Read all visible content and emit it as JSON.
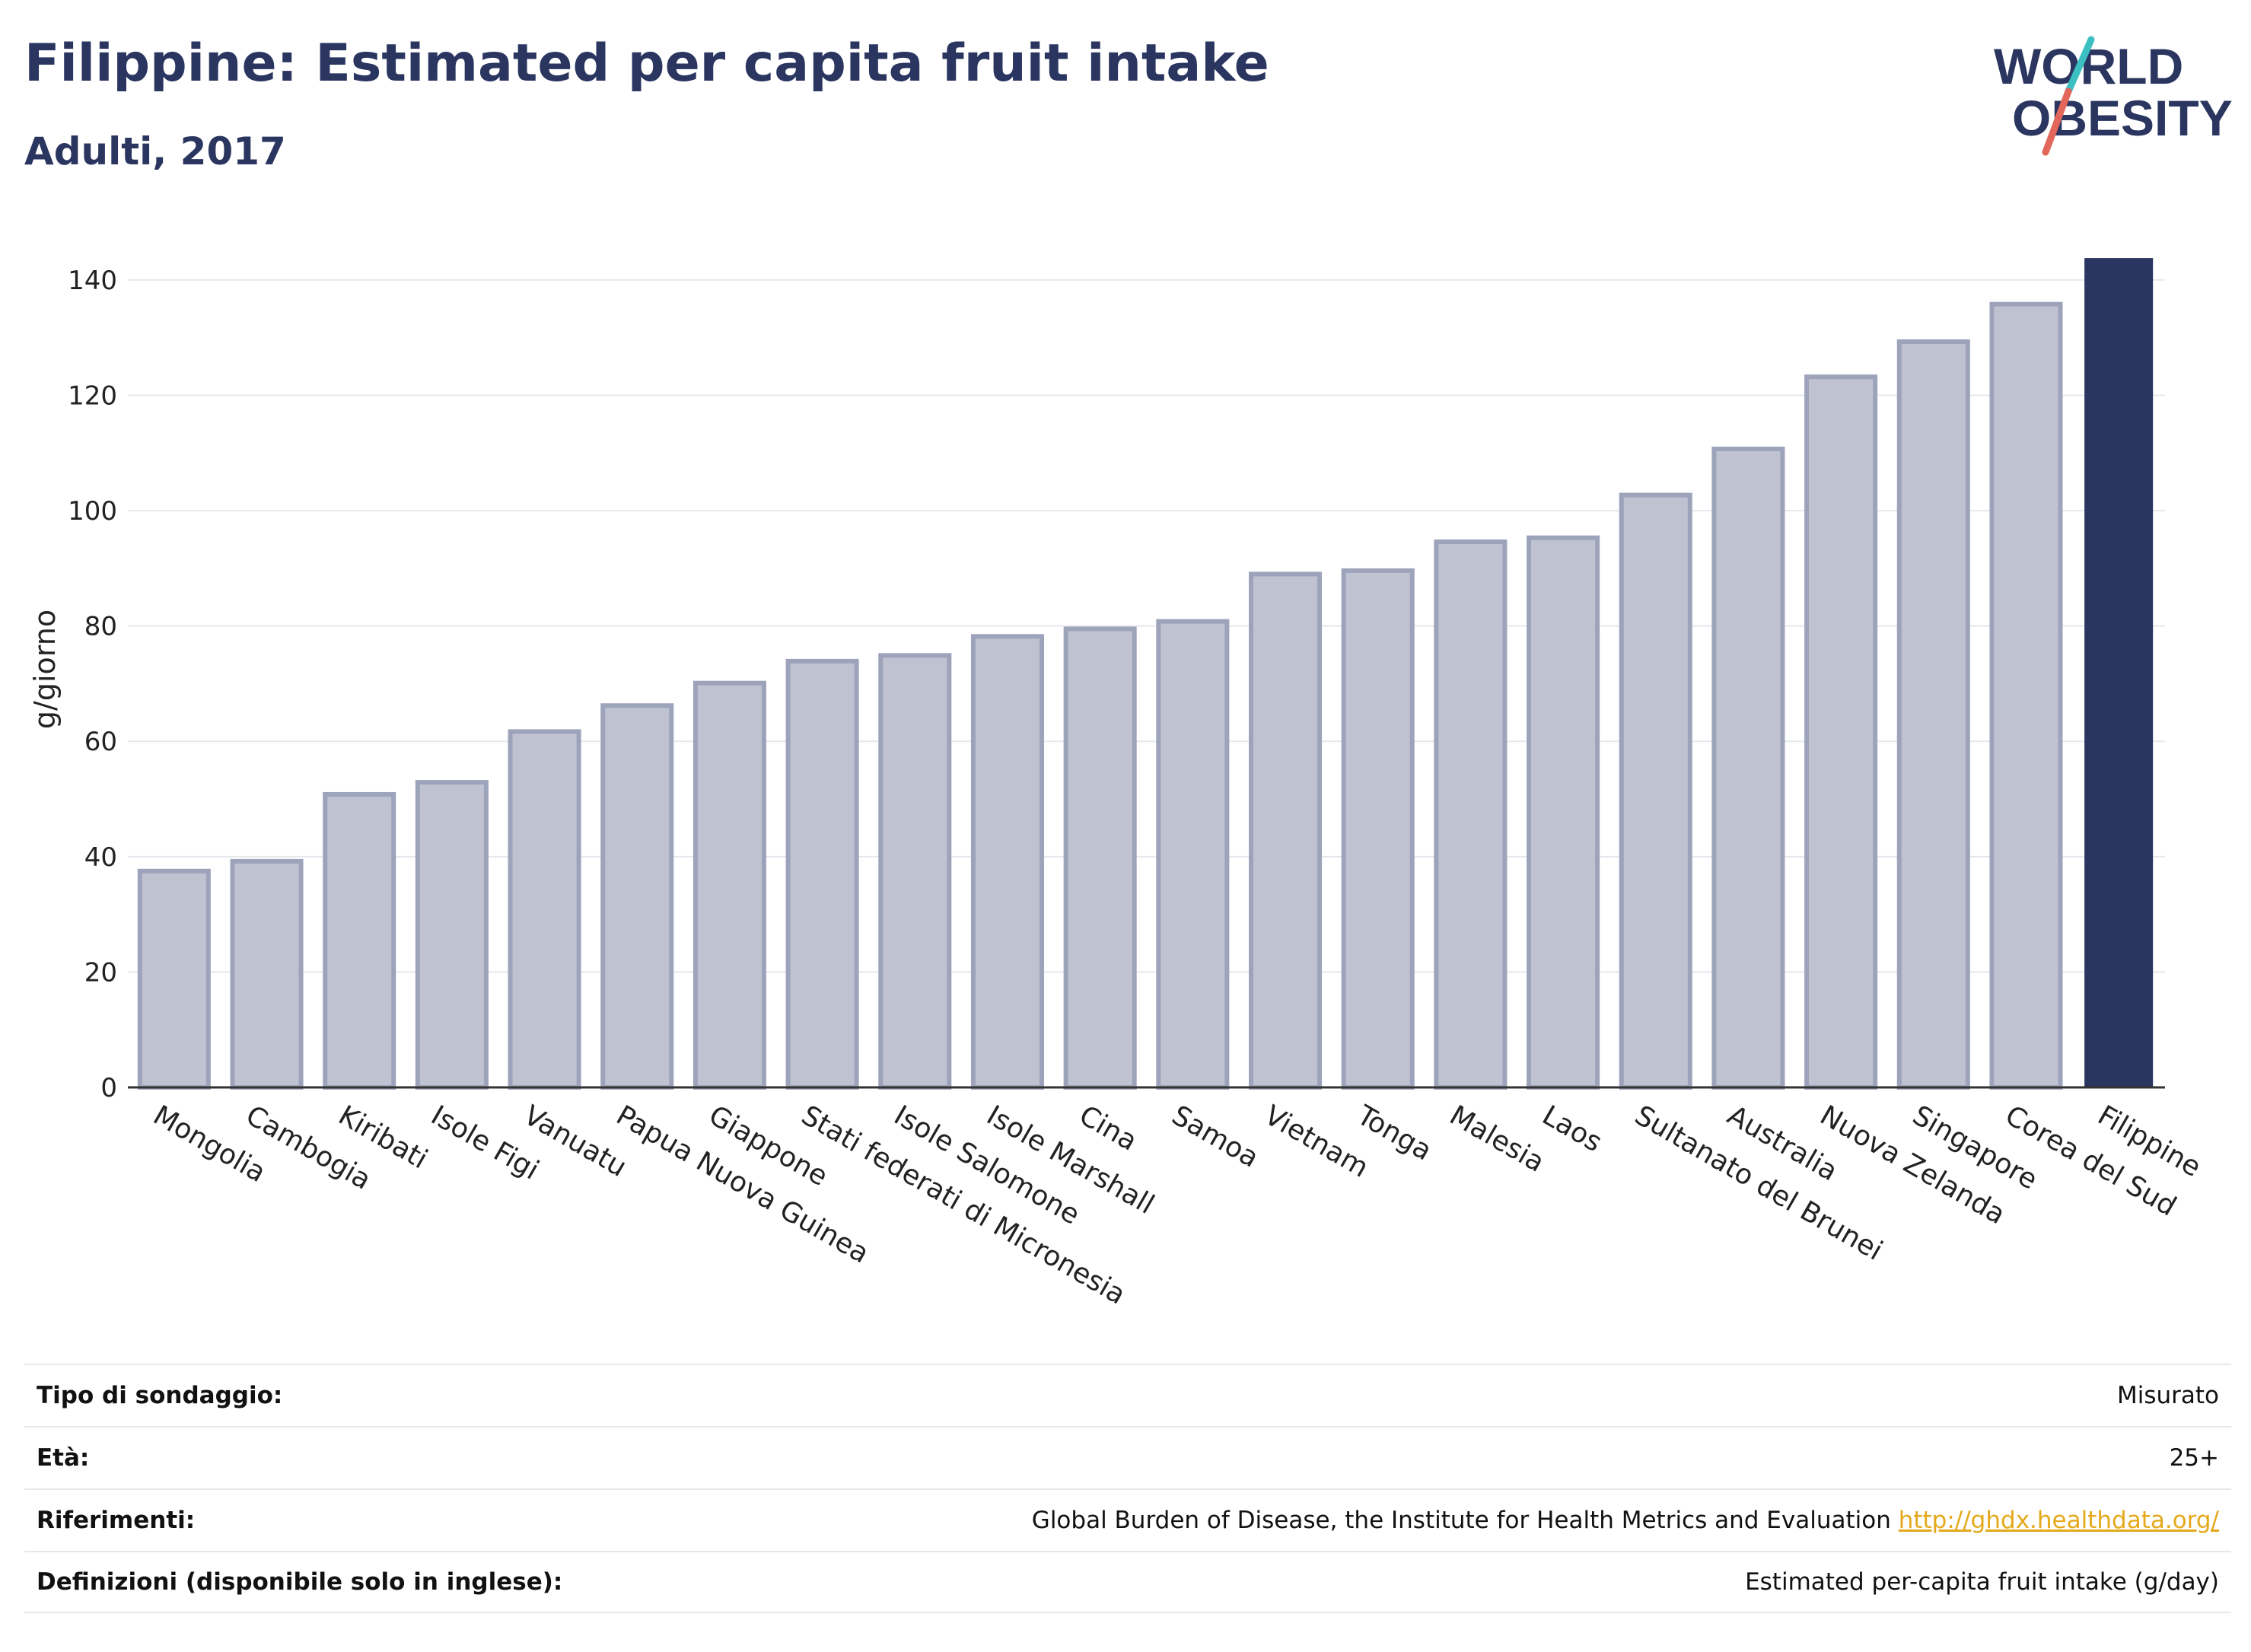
{
  "header": {
    "title": "Filippine: Estimated per capita fruit intake",
    "subtitle": "Adulti, 2017"
  },
  "logo": {
    "line1": "WORLD",
    "line2": "OBESITY",
    "colors": {
      "text": "#2a3560",
      "slash_teal": "#3bbfc1",
      "slash_red": "#e2665a"
    }
  },
  "chart_data": {
    "type": "bar",
    "ylabel": "g/giorno",
    "ylim": [
      0,
      145
    ],
    "yticks": [
      0,
      20,
      40,
      60,
      80,
      100,
      120,
      140
    ],
    "grid": true,
    "categories": [
      "Mongolia",
      "Cambogia",
      "Kiribati",
      "Isole Figi",
      "Vanuatu",
      "Papua Nuova Guinea",
      "Giappone",
      "Stati federati di Micronesia",
      "Isole Salomone",
      "Isole Marshall",
      "Cina",
      "Samoa",
      "Vietnam",
      "Tonga",
      "Malesia",
      "Laos",
      "Sultanato del Brunei",
      "Australia",
      "Nuova Zelanda",
      "Singapore",
      "Corea del Sud",
      "Filippine"
    ],
    "values": [
      37.5,
      39.2,
      50.8,
      52.9,
      61.7,
      66.2,
      70.1,
      73.9,
      74.9,
      78.2,
      79.5,
      80.8,
      89.0,
      89.6,
      94.6,
      95.3,
      102.7,
      110.7,
      123.2,
      129.3,
      135.8,
      143.8
    ],
    "highlight": "Filippine",
    "colors": {
      "bar": "#bfc3d1",
      "bar_edge": "#9da3ba",
      "highlight": "#2a3560"
    }
  },
  "info_table": [
    {
      "label": "Tipo di sondaggio:",
      "value": "Misurato"
    },
    {
      "label": "Età:",
      "value": "25+"
    },
    {
      "label": "Riferimenti:",
      "value": "Global Burden of Disease, the Institute for Health Metrics and Evaluation",
      "link": "http://ghdx.healthdata.org/"
    },
    {
      "label": "Definizioni (disponibile solo in inglese):",
      "value": "Estimated per-capita fruit intake (g/day)"
    }
  ]
}
